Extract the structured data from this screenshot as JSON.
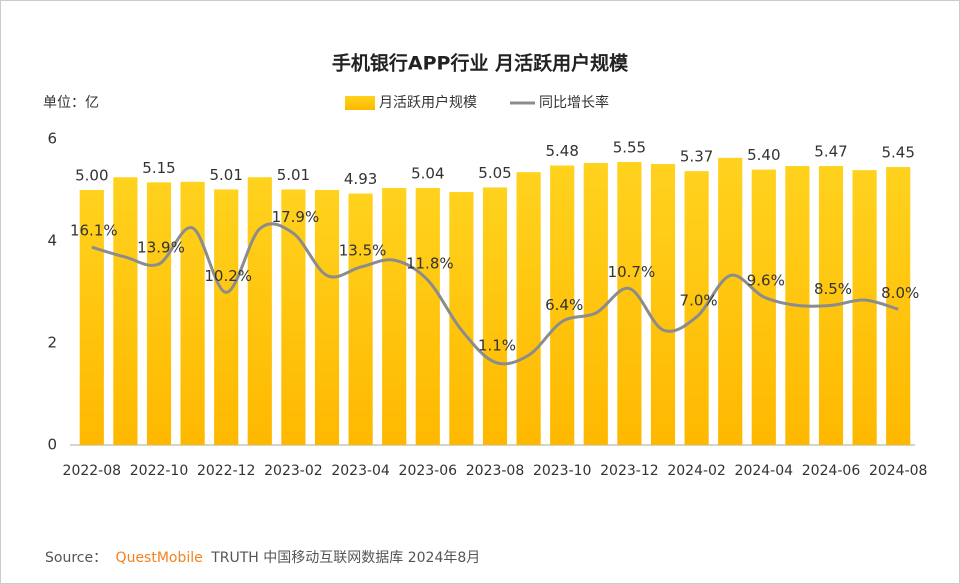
{
  "chart_data": {
    "type": "bar_line",
    "title": "手机银行APP行业 月活跃用户规模",
    "unit_label": "单位：亿",
    "categories": [
      "2022-08",
      null,
      "2022-10",
      null,
      "2022-12",
      null,
      "2023-02",
      null,
      "2023-04",
      null,
      "2023-06",
      null,
      "2023-08",
      null,
      "2023-10",
      null,
      "2023-12",
      null,
      "2024-02",
      null,
      "2024-04",
      null,
      "2024-06",
      null,
      "2024-08"
    ],
    "series": [
      {
        "name": "月活跃用户规模",
        "type": "bar",
        "color": "#FFC000",
        "values": [
          5.0,
          5.25,
          5.15,
          5.16,
          5.01,
          5.25,
          5.01,
          5.0,
          4.93,
          5.04,
          5.04,
          4.96,
          5.05,
          5.35,
          5.48,
          5.53,
          5.55,
          5.51,
          5.37,
          5.63,
          5.4,
          5.47,
          5.47,
          5.39,
          5.45
        ],
        "value_labels": [
          "5.00",
          null,
          "5.15",
          null,
          "5.01",
          null,
          "5.01",
          null,
          "4.93",
          null,
          "5.04",
          null,
          "5.05",
          null,
          "5.48",
          null,
          "5.55",
          null,
          "5.37",
          null,
          "5.40",
          null,
          "5.47",
          null,
          "5.45"
        ]
      },
      {
        "name": "同比增长率",
        "type": "line",
        "axis": "y2",
        "color": "#8c8c8c",
        "values": [
          16.1,
          14.8,
          13.9,
          18.6,
          10.2,
          18.5,
          17.9,
          12.4,
          13.5,
          14.4,
          11.8,
          5.3,
          1.1,
          2.0,
          6.4,
          7.5,
          10.7,
          5.3,
          7.0,
          12.4,
          9.6,
          8.5,
          8.5,
          9.2,
          8.0
        ],
        "value_labels": [
          "16.1%",
          null,
          "13.9%",
          null,
          "10.2%",
          null,
          "17.9%",
          null,
          "13.5%",
          null,
          "11.8%",
          null,
          "1.1%",
          null,
          "6.4%",
          null,
          "10.7%",
          null,
          "7.0%",
          null,
          "9.6%",
          null,
          "8.5%",
          null,
          "8.0%"
        ]
      }
    ],
    "ylim": [
      0,
      6
    ],
    "yticks": [
      0,
      2,
      4,
      6
    ],
    "y2lim": [
      -9.7,
      30.2
    ],
    "legend": "top",
    "source_prefix": "Source：",
    "source_brand": "QuestMobile",
    "source_text": "TRUTH 中国移动互联网数据库 2024年8月"
  }
}
